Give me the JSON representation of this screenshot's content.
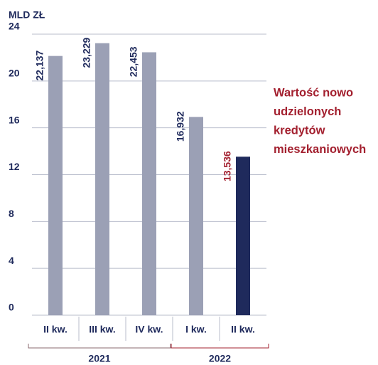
{
  "chart_data": {
    "type": "bar",
    "y_axis_label": "MLD ZŁ",
    "categories": [
      "II kw.",
      "III kw.",
      "IV kw.",
      "I kw.",
      "II kw."
    ],
    "values": [
      22.137,
      23.229,
      22.453,
      16.932,
      13.536
    ],
    "value_labels": [
      "22,137",
      "23,229",
      "22,453",
      "16,932",
      "13,536"
    ],
    "colors": [
      "#9ba0b5",
      "#9ba0b5",
      "#9ba0b5",
      "#9ba0b5",
      "#1f2a5c"
    ],
    "value_label_colors": [
      "#1f2a5c",
      "#1f2a5c",
      "#1f2a5c",
      "#1f2a5c",
      "#a3202f"
    ],
    "groups": [
      {
        "label": "2021",
        "size": 3,
        "color": "#8a6a6f"
      },
      {
        "label": "2022",
        "size": 2,
        "color": "#a3202f"
      }
    ],
    "annotation": [
      "Wartość nowo",
      "udzielonych",
      "kredytów",
      "mieszkaniowych"
    ],
    "annotation_color": "#a3202f",
    "ylim": [
      0,
      24
    ],
    "yticks": [
      0,
      4,
      8,
      12,
      16,
      20,
      24
    ],
    "grid": true
  }
}
